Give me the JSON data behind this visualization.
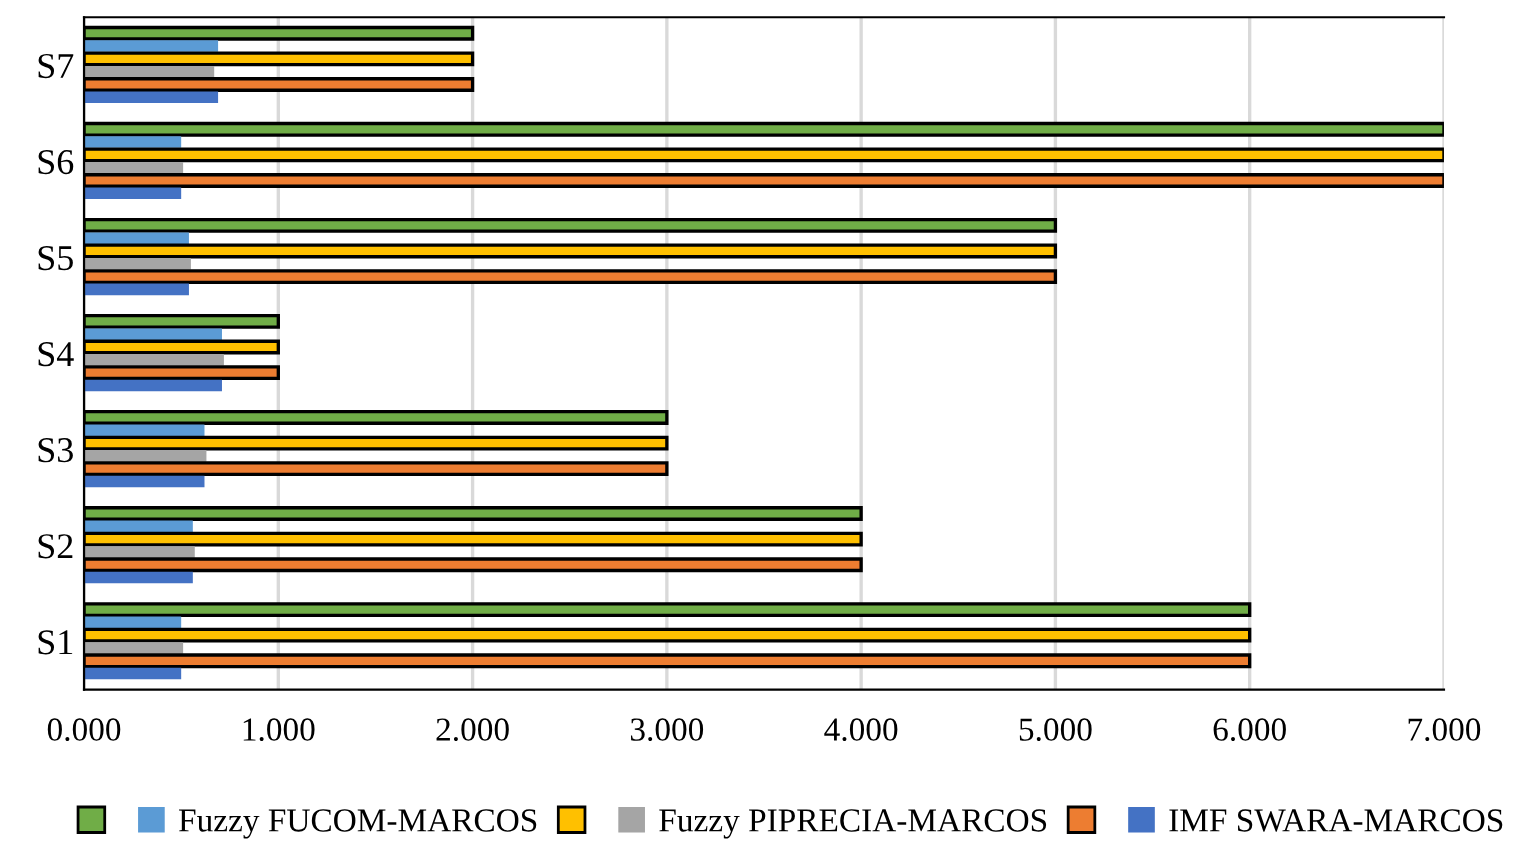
{
  "chart_data": {
    "type": "bar",
    "orientation": "horizontal",
    "categories": [
      "S7",
      "S6",
      "S5",
      "S4",
      "S3",
      "S2",
      "S1"
    ],
    "series": [
      {
        "color": "#70ad47",
        "values": [
          2,
          7,
          5,
          1,
          3,
          4,
          6
        ]
      },
      {
        "name": "Fuzzy FUCOM-MARCOS",
        "color": "#5b9bd5",
        "values": [
          0.69,
          0.5,
          0.54,
          0.71,
          0.62,
          0.56,
          0.5
        ]
      },
      {
        "color": "#ffc000",
        "values": [
          2,
          7,
          5,
          1,
          3,
          4,
          6
        ]
      },
      {
        "name": "Fuzzy PIPRECIA-MARCOS",
        "color": "#a5a5a5",
        "values": [
          0.67,
          0.51,
          0.55,
          0.72,
          0.63,
          0.57,
          0.51
        ]
      },
      {
        "color": "#ed7d31",
        "values": [
          2,
          7,
          5,
          1,
          3,
          4,
          6
        ]
      },
      {
        "name": "IMF SWARA-MARCOS",
        "color": "#4472c4",
        "values": [
          0.69,
          0.5,
          0.54,
          0.71,
          0.62,
          0.56,
          0.5
        ]
      }
    ],
    "xlim": [
      0,
      7
    ],
    "xticks": [
      {
        "value": 0,
        "label": "0.000"
      },
      {
        "value": 1,
        "label": "1.000"
      },
      {
        "value": 2,
        "label": "2.000"
      },
      {
        "value": 3,
        "label": "3.000"
      },
      {
        "value": 4,
        "label": "4.000"
      },
      {
        "value": 5,
        "label": "5.000"
      },
      {
        "value": 6,
        "label": "6.000"
      },
      {
        "value": 7,
        "label": "7.000"
      }
    ],
    "grid": "x",
    "legend": "bottom"
  }
}
